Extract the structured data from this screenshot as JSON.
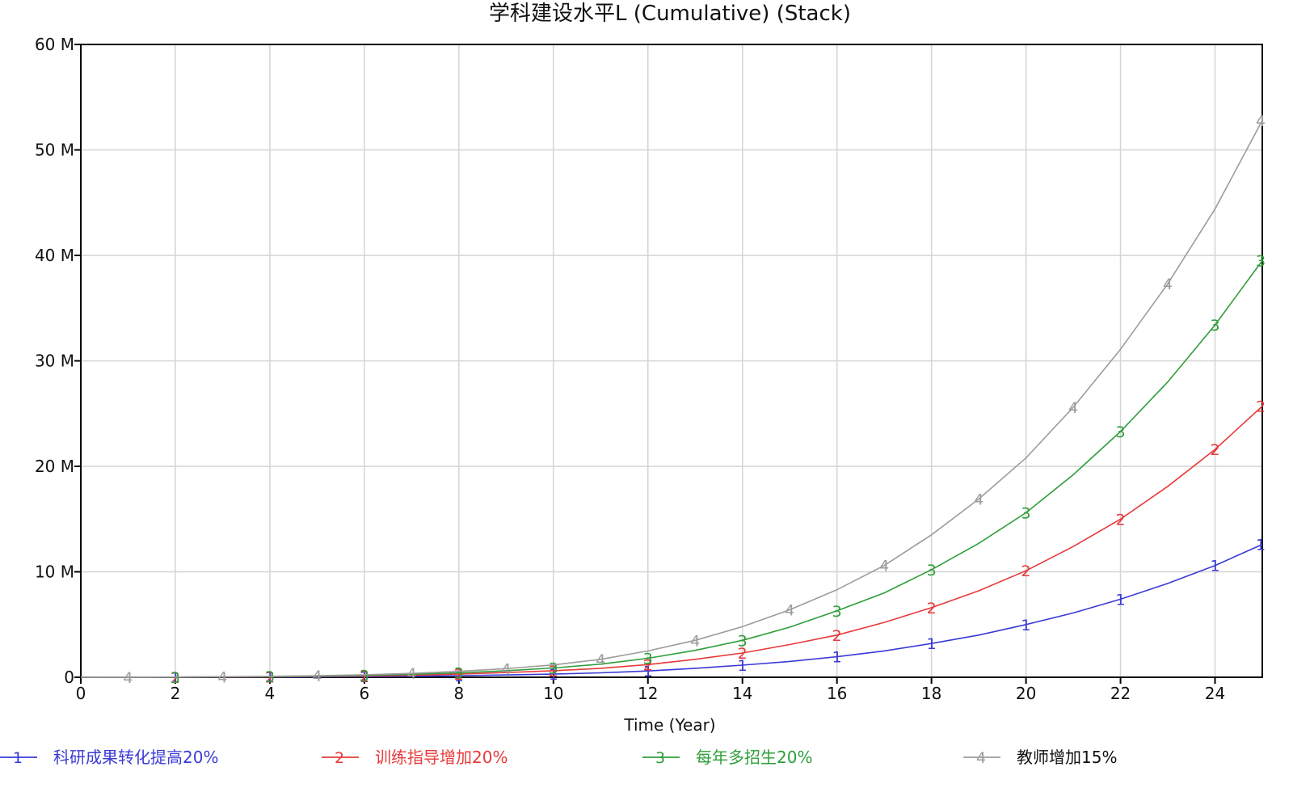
{
  "chart_data": {
    "type": "line",
    "title": "学科建设水平L (Cumulative) (Stack)",
    "xlabel": "Time (Year)",
    "ylabel": "",
    "xlim": [
      0,
      25
    ],
    "ylim": [
      0,
      60000000
    ],
    "xticks": [
      0,
      2,
      4,
      6,
      8,
      10,
      12,
      14,
      16,
      18,
      20,
      22,
      24
    ],
    "xtick_labels": [
      "0",
      "2",
      "4",
      "6",
      "8",
      "10",
      "12",
      "14",
      "16",
      "18",
      "20",
      "22",
      "24"
    ],
    "yticks": [
      0,
      10000000,
      20000000,
      30000000,
      40000000,
      50000000,
      60000000
    ],
    "ytick_labels": [
      "0",
      "10 M",
      "20 M",
      "30 M",
      "40 M",
      "50 M",
      "60 M"
    ],
    "grid": true,
    "legend_position": "bottom",
    "x": [
      0,
      1,
      2,
      3,
      4,
      5,
      6,
      7,
      8,
      9,
      10,
      11,
      12,
      13,
      14,
      15,
      16,
      17,
      18,
      19,
      20,
      21,
      22,
      23,
      24,
      25
    ],
    "series": [
      {
        "name": "科研成果转化提高20%",
        "marker": "1",
        "color": "#3a3ad6",
        "values": [
          0,
          2000,
          6000,
          12000,
          22000,
          38000,
          62000,
          100000,
          150000,
          220000,
          300000,
          420000,
          600000,
          850000,
          1150000,
          1500000,
          1950000,
          2500000,
          3200000,
          4000000,
          5000000,
          6100000,
          7400000,
          8900000,
          10600000,
          12600000
        ]
      },
      {
        "name": "训练指导增加20%",
        "marker": "2",
        "color": "#e8393a",
        "values": [
          0,
          4000,
          12000,
          24000,
          45000,
          75000,
          120000,
          200000,
          300000,
          450000,
          620000,
          850000,
          1200000,
          1700000,
          2300000,
          3100000,
          4000000,
          5200000,
          6600000,
          8200000,
          10100000,
          12400000,
          15000000,
          18100000,
          21600000,
          25700000
        ]
      },
      {
        "name": "每年多招生20%",
        "marker": "3",
        "color": "#2e9e3a",
        "values": [
          0,
          6000,
          18000,
          36000,
          65000,
          110000,
          180000,
          280000,
          420000,
          620000,
          880000,
          1250000,
          1800000,
          2550000,
          3500000,
          4750000,
          6300000,
          8000000,
          10200000,
          12700000,
          15600000,
          19200000,
          23300000,
          28000000,
          33400000,
          39500000
        ]
      },
      {
        "name": "教师增加15%",
        "marker": "4",
        "color": "#9c9c9c",
        "values": [
          0,
          9000,
          25000,
          50000,
          90000,
          150000,
          240000,
          370000,
          560000,
          820000,
          1170000,
          1700000,
          2500000,
          3500000,
          4800000,
          6400000,
          8300000,
          10600000,
          13500000,
          16900000,
          20800000,
          25600000,
          31100000,
          37300000,
          44400000,
          52800000
        ]
      }
    ]
  }
}
